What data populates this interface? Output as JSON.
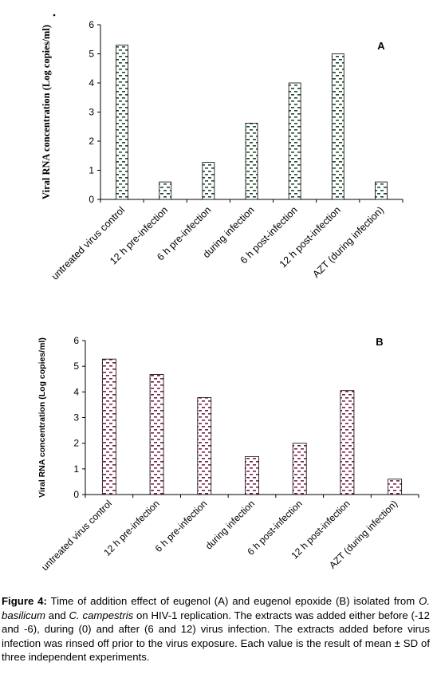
{
  "figure": {
    "panels": [
      {
        "panel_label": "A",
        "ylabel": "Viral RNA concentration (Log copies/ml)",
        "categories": [
          "untreated virus control",
          "12 h pre-infection",
          "6 h pre-infection",
          "during infection",
          "6 h post-infection",
          "12 h post-infection",
          "AZT (during infection)"
        ],
        "yticks": [
          "0",
          "1",
          "2",
          "3",
          "4",
          "5",
          "6"
        ]
      },
      {
        "panel_label": "B",
        "ylabel": "Viral RNA concentration (Log copies/ml)",
        "categories": [
          "untreated virus control",
          "12 h pre-infection",
          "6 h pre-infection",
          "during infection",
          "6 h post-infection",
          "12 h post-infection",
          "AZT (during infection)"
        ],
        "yticks": [
          "0",
          "1",
          "2",
          "3",
          "4",
          "5",
          "6"
        ]
      }
    ]
  },
  "caption": {
    "label": "Figure 4:",
    "part1": " Time of addition effect of eugenol (A) and eugenol epoxide (B) isolated from ",
    "species1": "O. basilicum",
    "part2": " and ",
    "species2": "C. campestris",
    "part3": " on HIV-1 replication. The extracts was added either before (-12 and -6), during (0) and after (6 and 12) virus infection. The extracts added before virus infection was rinsed off prior to the virus exposure. Each value is the result of mean ± SD of three independent experiments."
  },
  "chart_data": [
    {
      "type": "bar",
      "panel": "A",
      "categories": [
        "untreated virus control",
        "12 h pre-infection",
        "6 h pre-infection",
        "during infection",
        "6 h post-infection",
        "12 h post-infection",
        "AZT (during infection)"
      ],
      "values": [
        5.3,
        0.6,
        1.27,
        2.62,
        4.0,
        5.0,
        0.6
      ],
      "ylabel": "Viral RNA concentration (Log copies/ml)",
      "ylim": [
        0,
        6
      ],
      "grid": false,
      "bar_fill": "#ffffff",
      "bar_pattern_color": "#1f4a2c"
    },
    {
      "type": "bar",
      "panel": "B",
      "categories": [
        "untreated virus control",
        "12 h pre-infection",
        "6 h pre-infection",
        "during infection",
        "6 h post-infection",
        "12 h post-infection",
        "AZT (during infection)"
      ],
      "values": [
        5.28,
        4.68,
        3.78,
        1.48,
        2.0,
        4.05,
        0.6
      ],
      "ylabel": "Viral RNA concentration (Log copies/ml)",
      "ylim": [
        0,
        6
      ],
      "grid": false,
      "bar_fill": "#ffffff",
      "bar_pattern_color": "#7a1f4a"
    }
  ]
}
